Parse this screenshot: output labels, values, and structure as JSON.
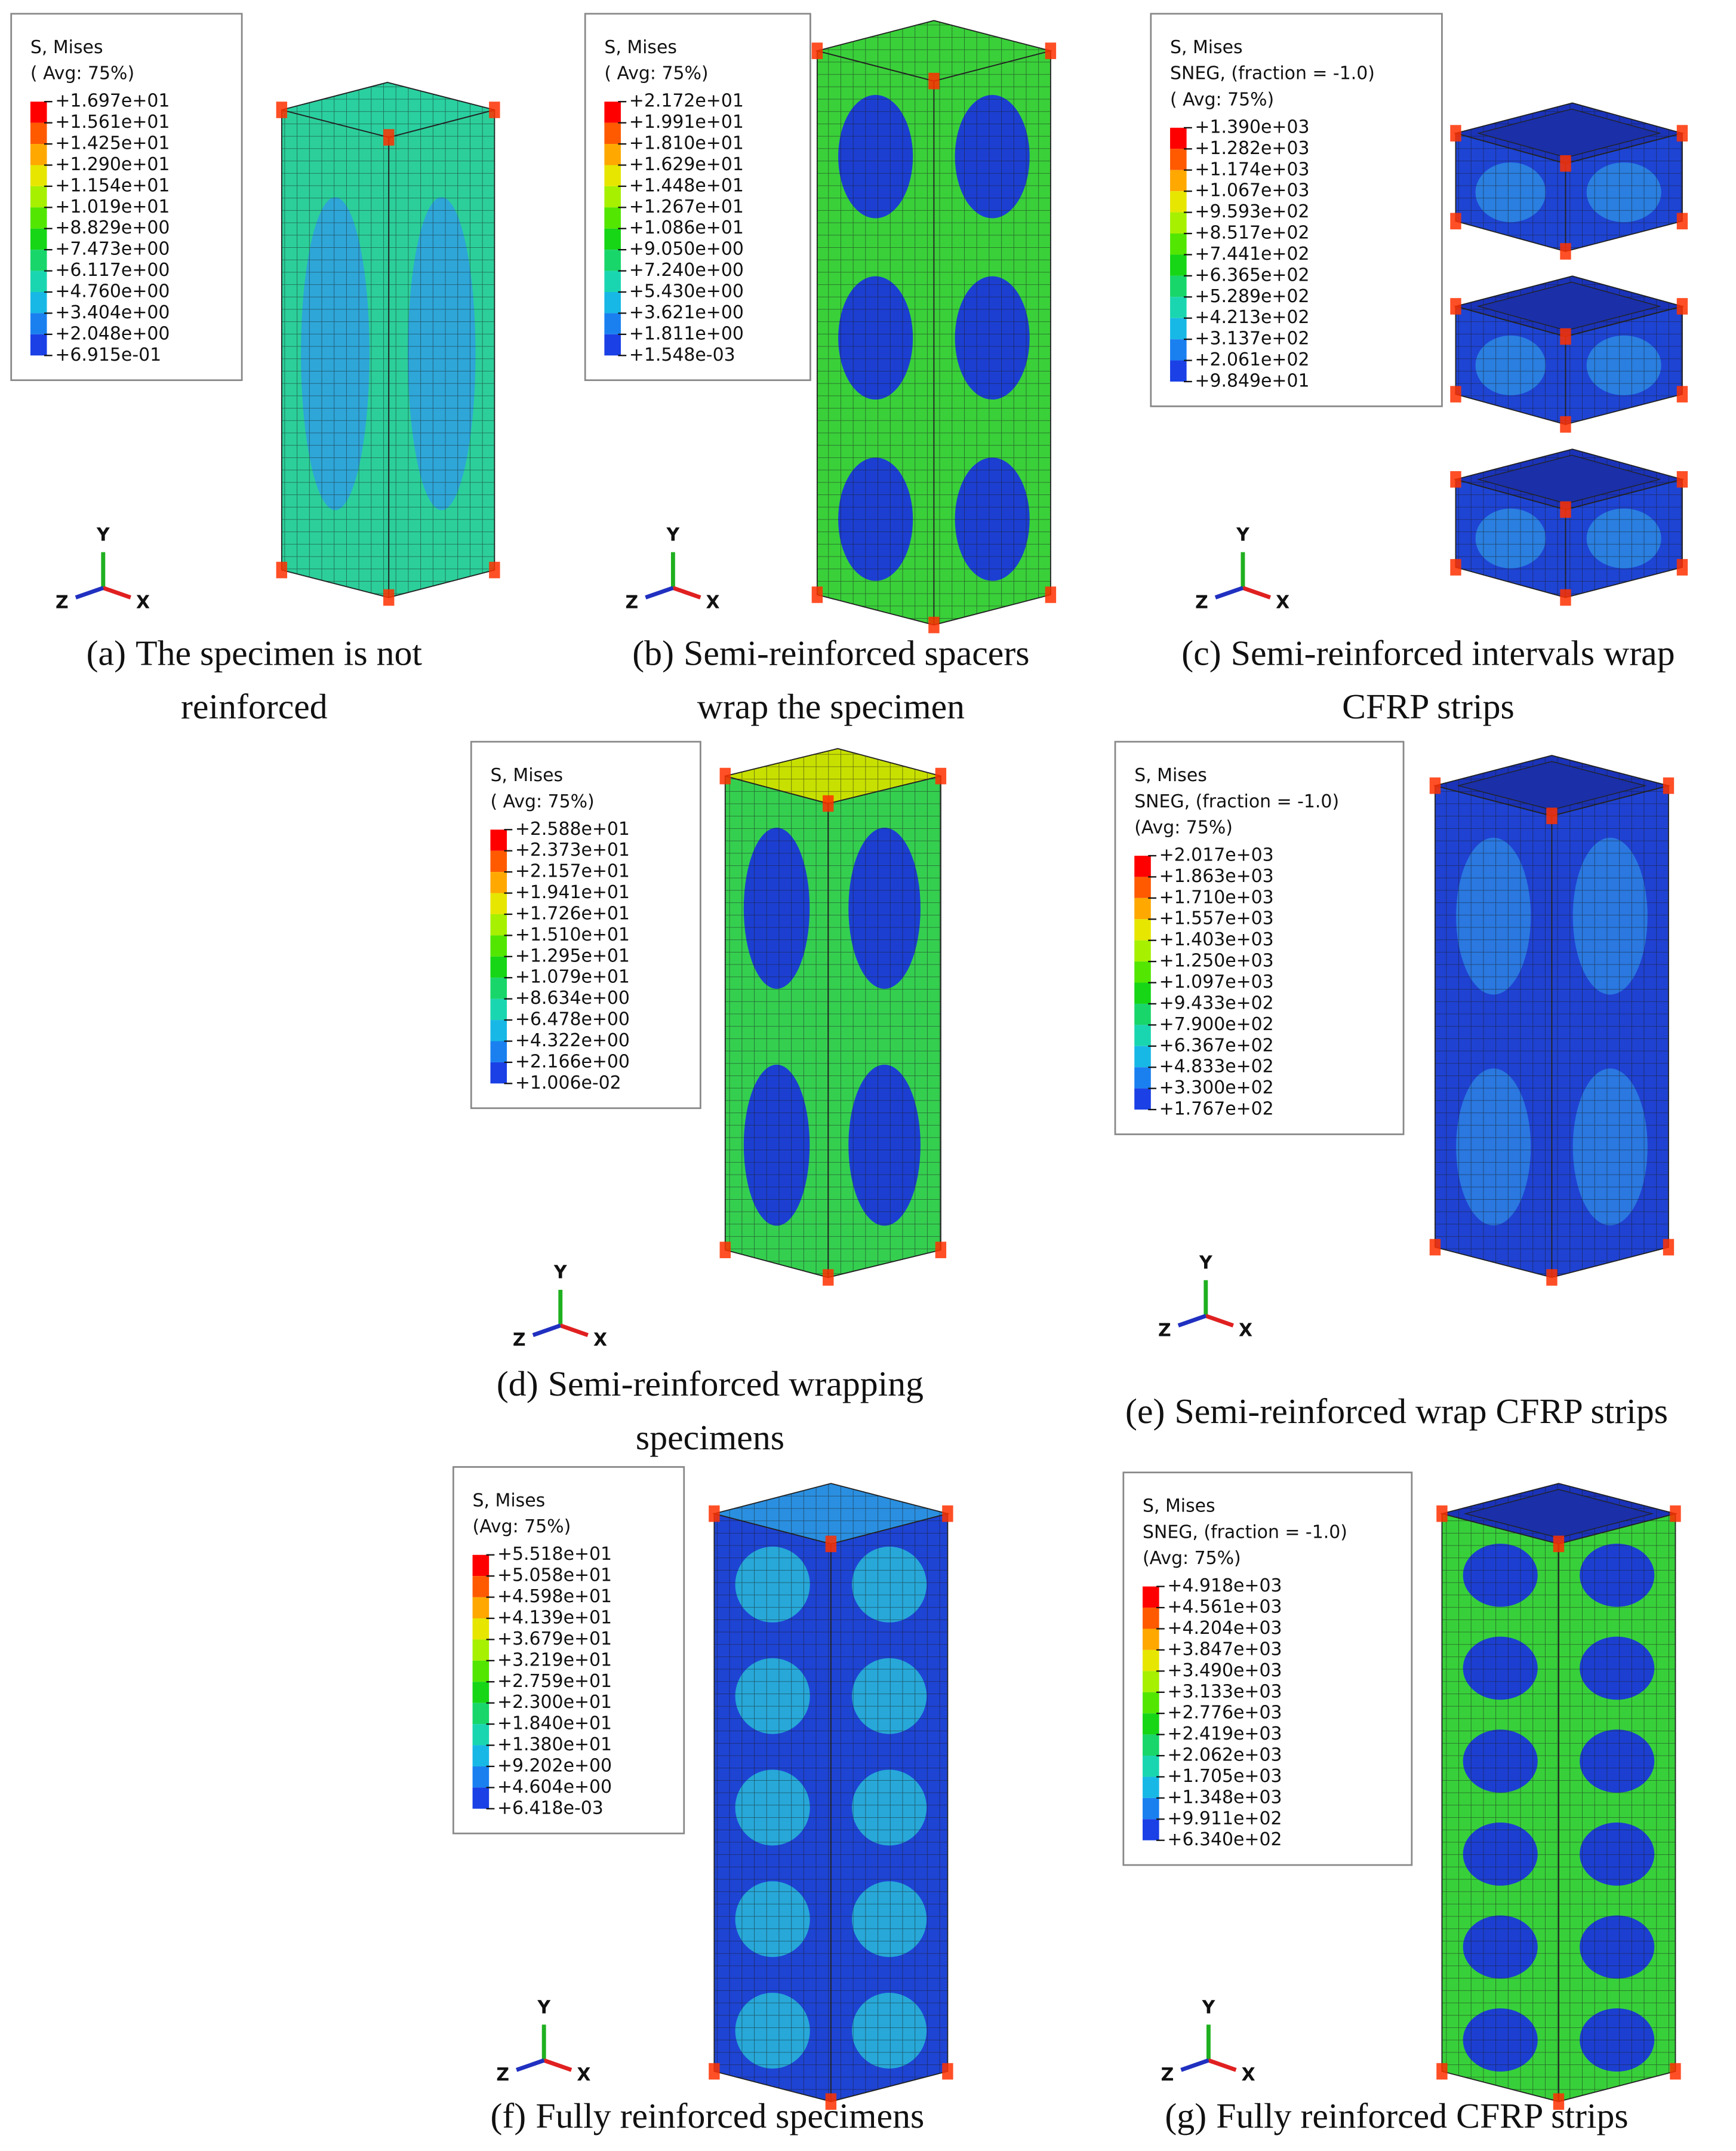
{
  "panels": [
    {
      "label": "(a)",
      "caption": [
        "The specimen is not",
        "reinforced"
      ],
      "legend": {
        "header": [
          "S, Mises",
          "( Avg: 75%)"
        ],
        "values": [
          "+1.697e+01",
          "+1.561e+01",
          "+1.425e+01",
          "+1.290e+01",
          "+1.154e+01",
          "+1.019e+01",
          "+8.829e+00",
          "+7.473e+00",
          "+6.117e+00",
          "+4.760e+00",
          "+3.404e+00",
          "+2.048e+00",
          "+6.915e-01"
        ]
      },
      "axes": {
        "y": "Y",
        "z": "Z",
        "x": "X"
      }
    },
    {
      "label": "(b)",
      "caption": [
        "Semi-reinforced spacers",
        "wrap the specimen"
      ],
      "legend": {
        "header": [
          "S, Mises",
          "( Avg: 75%)"
        ],
        "values": [
          "+2.172e+01",
          "+1.991e+01",
          "+1.810e+01",
          "+1.629e+01",
          "+1.448e+01",
          "+1.267e+01",
          "+1.086e+01",
          "+9.050e+00",
          "+7.240e+00",
          "+5.430e+00",
          "+3.621e+00",
          "+1.811e+00",
          "+1.548e-03"
        ]
      },
      "axes": {
        "y": "Y",
        "z": "Z",
        "x": "X"
      }
    },
    {
      "label": "(c)",
      "caption": [
        "Semi-reinforced intervals wrap",
        "CFRP strips"
      ],
      "legend": {
        "header": [
          "S, Mises",
          "SNEG, (fraction = -1.0)",
          "( Avg: 75%)"
        ],
        "values": [
          "+1.390e+03",
          "+1.282e+03",
          "+1.174e+03",
          "+1.067e+03",
          "+9.593e+02",
          "+8.517e+02",
          "+7.441e+02",
          "+6.365e+02",
          "+5.289e+02",
          "+4.213e+02",
          "+3.137e+02",
          "+2.061e+02",
          "+9.849e+01"
        ]
      },
      "axes": {
        "y": "Y",
        "z": "Z",
        "x": "X"
      }
    },
    {
      "label": "(d)",
      "caption": [
        "Semi-reinforced wrapping",
        "specimens"
      ],
      "legend": {
        "header": [
          "S, Mises",
          "( Avg: 75%)"
        ],
        "values": [
          "+2.588e+01",
          "+2.373e+01",
          "+2.157e+01",
          "+1.941e+01",
          "+1.726e+01",
          "+1.510e+01",
          "+1.295e+01",
          "+1.079e+01",
          "+8.634e+00",
          "+6.478e+00",
          "+4.322e+00",
          "+2.166e+00",
          "+1.006e-02"
        ]
      },
      "axes": {
        "y": "Y",
        "z": "Z",
        "x": "X"
      }
    },
    {
      "label": "(e)",
      "caption": [
        "Semi-reinforced wrap CFRP strips"
      ],
      "legend": {
        "header": [
          "S, Mises",
          "SNEG, (fraction = -1.0)",
          "(Avg: 75%)"
        ],
        "values": [
          "+2.017e+03",
          "+1.863e+03",
          "+1.710e+03",
          "+1.557e+03",
          "+1.403e+03",
          "+1.250e+03",
          "+1.097e+03",
          "+9.433e+02",
          "+7.900e+02",
          "+6.367e+02",
          "+4.833e+02",
          "+3.300e+02",
          "+1.767e+02"
        ]
      },
      "axes": {
        "y": "Y",
        "z": "Z",
        "x": "X"
      }
    },
    {
      "label": "(f)",
      "caption": [
        "Fully reinforced specimens"
      ],
      "legend": {
        "header": [
          "S, Mises",
          "(Avg: 75%)"
        ],
        "values": [
          "+5.518e+01",
          "+5.058e+01",
          "+4.598e+01",
          "+4.139e+01",
          "+3.679e+01",
          "+3.219e+01",
          "+2.759e+01",
          "+2.300e+01",
          "+1.840e+01",
          "+1.380e+01",
          "+9.202e+00",
          "+4.604e+00",
          "+6.418e-03"
        ]
      },
      "axes": {
        "y": "Y",
        "z": "Z",
        "x": "X"
      }
    },
    {
      "label": "(g)",
      "caption": [
        "Fully reinforced CFRP strips"
      ],
      "legend": {
        "header": [
          "S, Mises",
          "SNEG, (fraction = -1.0)",
          "(Avg: 75%)"
        ],
        "values": [
          "+4.918e+03",
          "+4.561e+03",
          "+4.204e+03",
          "+3.847e+03",
          "+3.490e+03",
          "+3.133e+03",
          "+2.776e+03",
          "+2.419e+03",
          "+2.062e+03",
          "+1.705e+03",
          "+1.348e+03",
          "+9.911e+02",
          "+6.340e+02"
        ]
      },
      "axes": {
        "y": "Y",
        "z": "Z",
        "x": "X"
      }
    }
  ]
}
